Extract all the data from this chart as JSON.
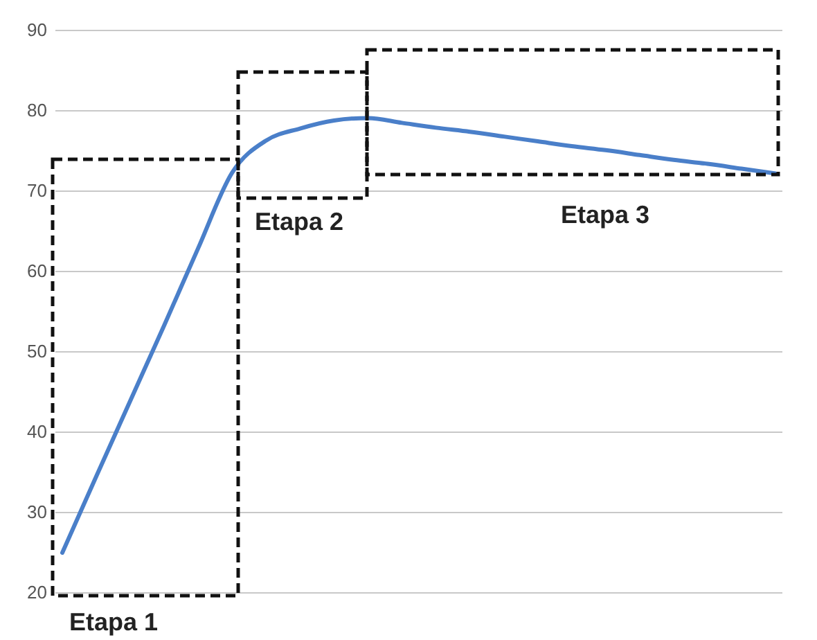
{
  "chart_data": {
    "type": "line",
    "categories": [
      null,
      null,
      null,
      null,
      null,
      null,
      null,
      null,
      null,
      null,
      null,
      null,
      null,
      null,
      null,
      null,
      null,
      null,
      null,
      null,
      null,
      null
    ],
    "series": [
      {
        "color": "#4a7fc9",
        "values": [
          25,
          34.5,
          43.9,
          53.3,
          62.9,
          72.3,
          76.3,
          77.8,
          78.8,
          79.1,
          78.5,
          77.9,
          77.4,
          76.8,
          76.2,
          75.6,
          75.1,
          74.5,
          73.9,
          73.4,
          72.8,
          72.2
        ]
      }
    ],
    "ylim": [
      20,
      90
    ],
    "yticks": [
      20,
      30,
      40,
      50,
      60,
      70,
      80,
      90
    ],
    "grid": "y",
    "tick_labels": "y",
    "marker": "none",
    "line_style": "solid",
    "annotations": [
      "Etapa 1",
      "Etapa 2",
      "Etapa 3"
    ]
  }
}
